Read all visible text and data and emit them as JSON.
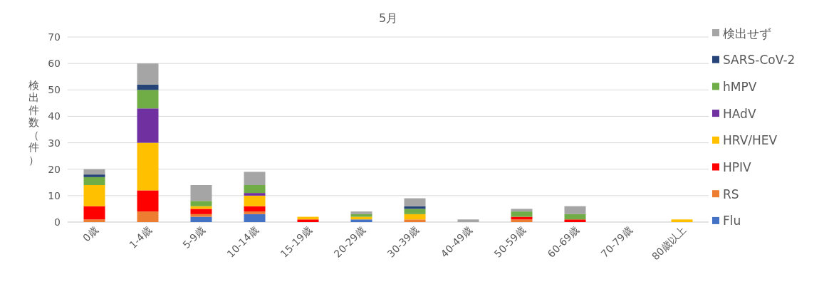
{
  "chart_data": {
    "type": "bar",
    "title": "5月",
    "ylabel": "検出件数（件）",
    "categories": [
      "0歳",
      "1-4歳",
      "5-9歳",
      "10-14歳",
      "15-19歳",
      "20-29歳",
      "30-39歳",
      "40-49歳",
      "50-59歳",
      "60-69歳",
      "70-79歳",
      "80歳以上"
    ],
    "stacked": true,
    "ylim": [
      0,
      70
    ],
    "yticks": [
      0,
      10,
      20,
      30,
      40,
      50,
      60,
      70
    ],
    "grid": "y",
    "legend": "right",
    "series": [
      {
        "name": "Flu",
        "color": "#4472c4",
        "values": [
          0,
          0,
          2,
          3,
          0,
          1,
          0,
          0,
          0,
          0,
          0,
          0
        ]
      },
      {
        "name": "RS",
        "color": "#ed7d31",
        "values": [
          1,
          4,
          1,
          1,
          0,
          0,
          1,
          0,
          1,
          0,
          0,
          0
        ]
      },
      {
        "name": "HPIV",
        "color": "#ff0000",
        "values": [
          5,
          8,
          2,
          2,
          1,
          0,
          0,
          0,
          1,
          1,
          0,
          0
        ]
      },
      {
        "name": "HRV/HEV",
        "color": "#ffc000",
        "values": [
          8,
          18,
          1,
          4,
          1,
          1,
          2,
          0,
          0,
          0,
          0,
          1
        ]
      },
      {
        "name": "HAdV",
        "color": "#7030a0",
        "values": [
          0,
          13,
          0,
          1,
          0,
          0,
          0,
          0,
          0,
          0,
          0,
          0
        ]
      },
      {
        "name": "hMPV",
        "color": "#70ad47",
        "values": [
          3,
          7,
          2,
          3,
          0,
          1,
          2,
          0,
          2,
          2,
          0,
          0
        ]
      },
      {
        "name": "SARS-CoV-2",
        "color": "#264478",
        "values": [
          1,
          2,
          0,
          0,
          0,
          0,
          1,
          0,
          0,
          0,
          0,
          0
        ]
      },
      {
        "name": "検出せず",
        "color": "#a5a5a5",
        "values": [
          2,
          8,
          6,
          5,
          0,
          1,
          3,
          1,
          1,
          3,
          0,
          0
        ]
      }
    ]
  }
}
